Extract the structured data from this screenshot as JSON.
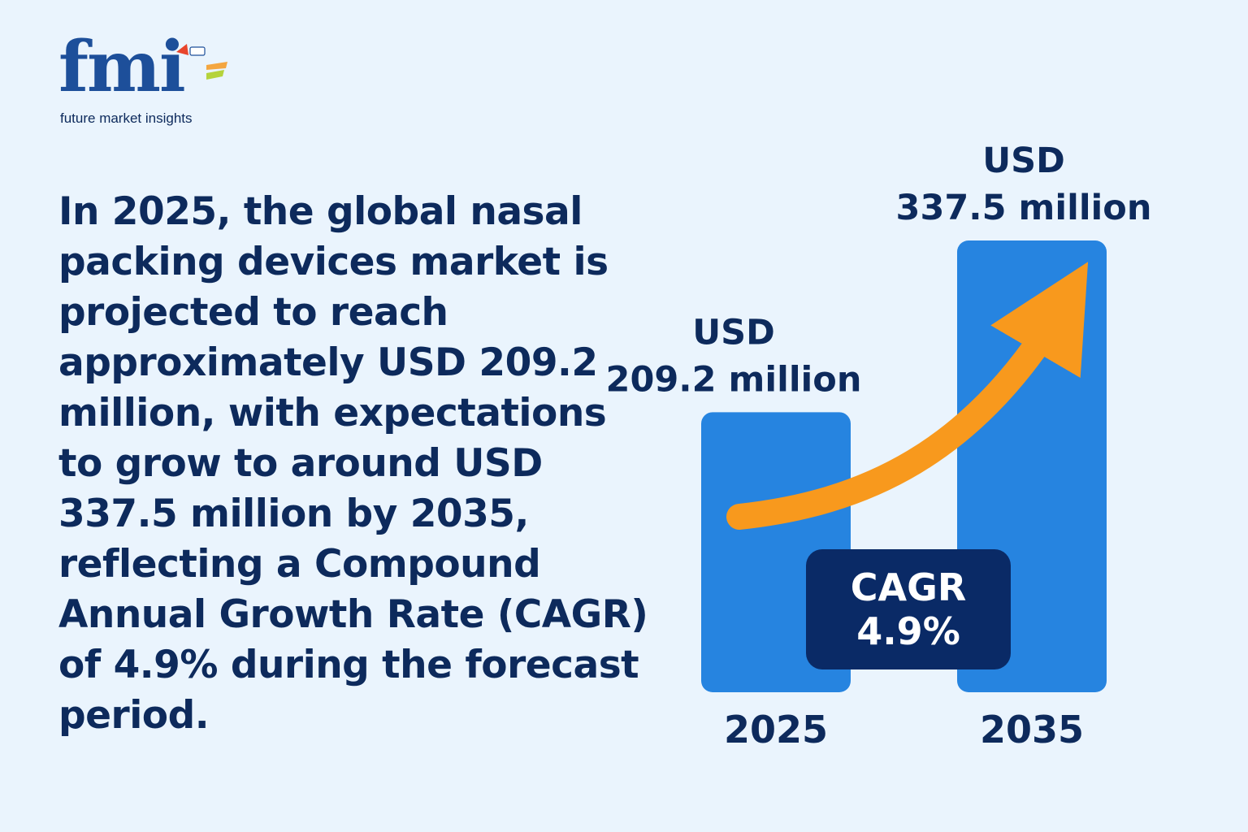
{
  "brand": {
    "logo_text": "fmi",
    "tagline": "future market insights"
  },
  "headline": "In 2025, the global nasal packing devices market is projected to reach approximately USD 209.2 million, with expectations to grow to around USD 337.5 million by 2035, reflecting a Compound Annual Growth Rate (CAGR) of 4.9% during the forecast period.",
  "chart_data": {
    "type": "bar",
    "categories": [
      "2025",
      "2035"
    ],
    "values": [
      209.2,
      337.5
    ],
    "value_labels": [
      [
        "USD",
        "209.2 million"
      ],
      [
        "USD",
        "337.5 million"
      ]
    ],
    "ylim": [
      0,
      337.5
    ],
    "grid": false,
    "legend": "none",
    "annotation": {
      "line1": "CAGR",
      "line2": "4.9%"
    },
    "colors": {
      "bar": "#2684e0",
      "arrow": "#f8991d",
      "badge": "#0a2a66",
      "text": "#0d2a5c"
    }
  }
}
